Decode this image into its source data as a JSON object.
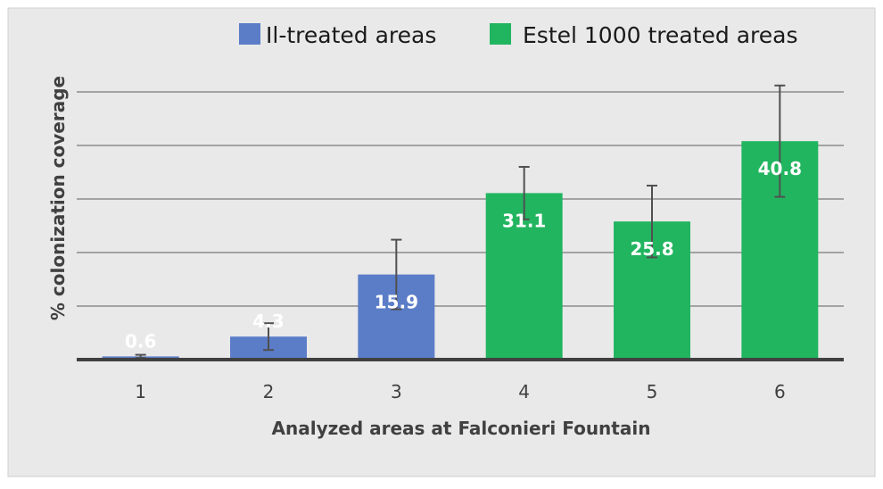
{
  "chart_data": {
    "type": "bar",
    "title": "",
    "xlabel": "Analyzed areas at Falconieri Fountain",
    "ylabel": "% colonization coverage",
    "categories": [
      "1",
      "2",
      "3",
      "4",
      "5",
      "6"
    ],
    "series": [
      {
        "name": "Il-treated areas",
        "color": "#5b7dc8",
        "values": [
          0.6,
          4.3,
          15.9,
          null,
          null,
          null
        ],
        "error": [
          0.3,
          2.5,
          6.5,
          null,
          null,
          null
        ]
      },
      {
        "name": "Estel 1000 treated areas",
        "color": "#22b560",
        "values": [
          null,
          null,
          null,
          31.1,
          25.8,
          40.8
        ],
        "error": [
          null,
          null,
          null,
          4.9,
          6.7,
          10.4
        ]
      }
    ],
    "data_labels": [
      "0.6",
      "4.3",
      "15.9",
      "31.1",
      "25.8",
      "40.8"
    ],
    "ylim": [
      0,
      50
    ],
    "y_gridline_step": 10,
    "y_tick_labels_shown": false,
    "grid": true,
    "legend_position": "top",
    "colors": {
      "background": "#e9e9e9",
      "gridline": "#8c8c8c",
      "axis": "#404040",
      "error_bar": "#505050"
    }
  }
}
